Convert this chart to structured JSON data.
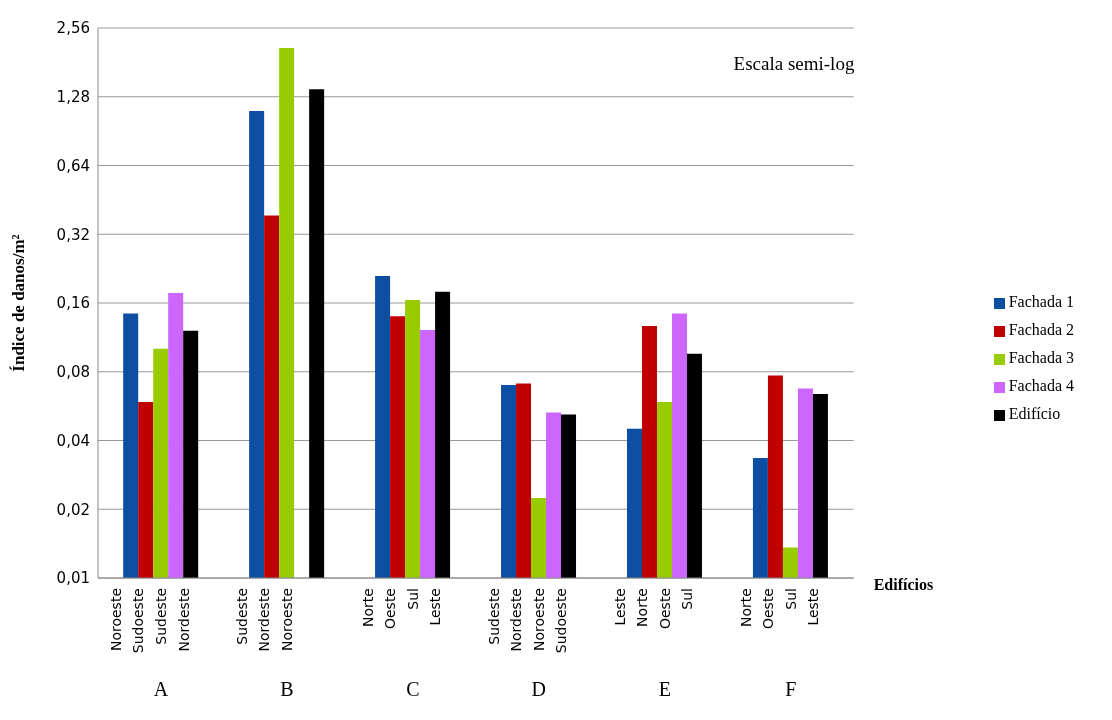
{
  "chart_data": {
    "type": "bar",
    "xlabel": "Edifícios",
    "ylabel": "Índice de danos/m²",
    "categories": [
      "A",
      "B",
      "C",
      "D",
      "E",
      "F"
    ],
    "series": [
      {
        "name": "Fachada 1",
        "color": "#0b4ea2",
        "values": [
          0.144,
          1.11,
          0.21,
          0.07,
          0.045,
          0.0335
        ]
      },
      {
        "name": "Fachada 2",
        "color": "#c00000",
        "values": [
          0.059,
          0.387,
          0.14,
          0.071,
          0.127,
          0.077
        ]
      },
      {
        "name": "Fachada 3",
        "color": "#99cc00",
        "values": [
          0.101,
          2.09,
          0.165,
          0.0224,
          0.059,
          0.0136
        ]
      },
      {
        "name": "Fachada 4",
        "color": "#cc66ff",
        "values": [
          0.177,
          null,
          0.122,
          0.053,
          0.144,
          0.0675
        ]
      },
      {
        "name": "Edifício",
        "color": "#000000",
        "values": [
          0.121,
          1.38,
          0.179,
          0.052,
          0.096,
          0.064
        ]
      }
    ],
    "log": "y",
    "ylim": [
      0.01,
      2.56
    ],
    "yticks": [
      {
        "value": 0.01,
        "label": "0,01"
      },
      {
        "value": 0.02,
        "label": "0,02"
      },
      {
        "value": 0.04,
        "label": "0,04"
      },
      {
        "value": 0.08,
        "label": "0,08"
      },
      {
        "value": 0.16,
        "label": "0,16"
      },
      {
        "value": 0.32,
        "label": "0,32"
      },
      {
        "value": 0.64,
        "label": "0,64"
      },
      {
        "value": 1.28,
        "label": "1,28"
      },
      {
        "value": 2.56,
        "label": "2,56"
      }
    ],
    "grid": "y",
    "legend": "right",
    "annotations": [
      "Escala semi-log",
      "Noroeste",
      "Sudoeste",
      "Sudeste",
      "Nordeste",
      "Sudeste",
      "Nordeste",
      "Noroeste",
      "Norte",
      "Oeste",
      "Sul",
      "Leste",
      "Sudeste",
      "Nordeste",
      "Noroeste",
      "Sudoeste",
      "Leste",
      "Norte",
      "Oeste",
      "Sul",
      "Norte",
      "Oeste",
      "Sul",
      "Leste"
    ]
  }
}
